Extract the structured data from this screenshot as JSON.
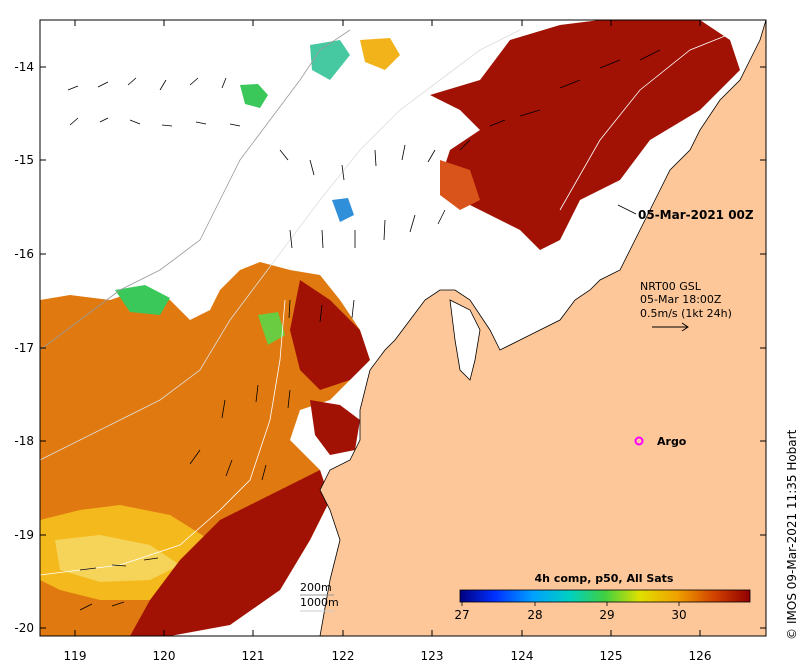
{
  "map": {
    "composite_title": "4h comp, p50, All Sats",
    "date_label": "05-Mar-2021 00Z",
    "current_label_line1": "NRT00 GSL",
    "current_label_line2": "05-Mar 18:00Z",
    "current_label_line3": "0.5m/s (1kt 24h)",
    "argo_label": "Argo",
    "credit": "IMOS 09-Mar-2021 11:35 Hobart",
    "copyright_symbol": "©",
    "isobath_labels": [
      "200m",
      "1000m"
    ],
    "lon_ticks": [
      "119",
      "120",
      "121",
      "122",
      "123",
      "124",
      "125",
      "126"
    ],
    "lat_ticks": [
      "-14",
      "-15",
      "-16",
      "-17",
      "-18",
      "-19",
      "-20"
    ],
    "colorbar_ticks": [
      "27",
      "28",
      "29",
      "30"
    ]
  },
  "colors": {
    "land": "#fdc79a",
    "sst_hot": "#a11205",
    "sst_warm": "#e07a10",
    "sst_mid": "#f2b21a",
    "sst_cool": "#3ac85a",
    "argo": "#ff00ff"
  }
}
